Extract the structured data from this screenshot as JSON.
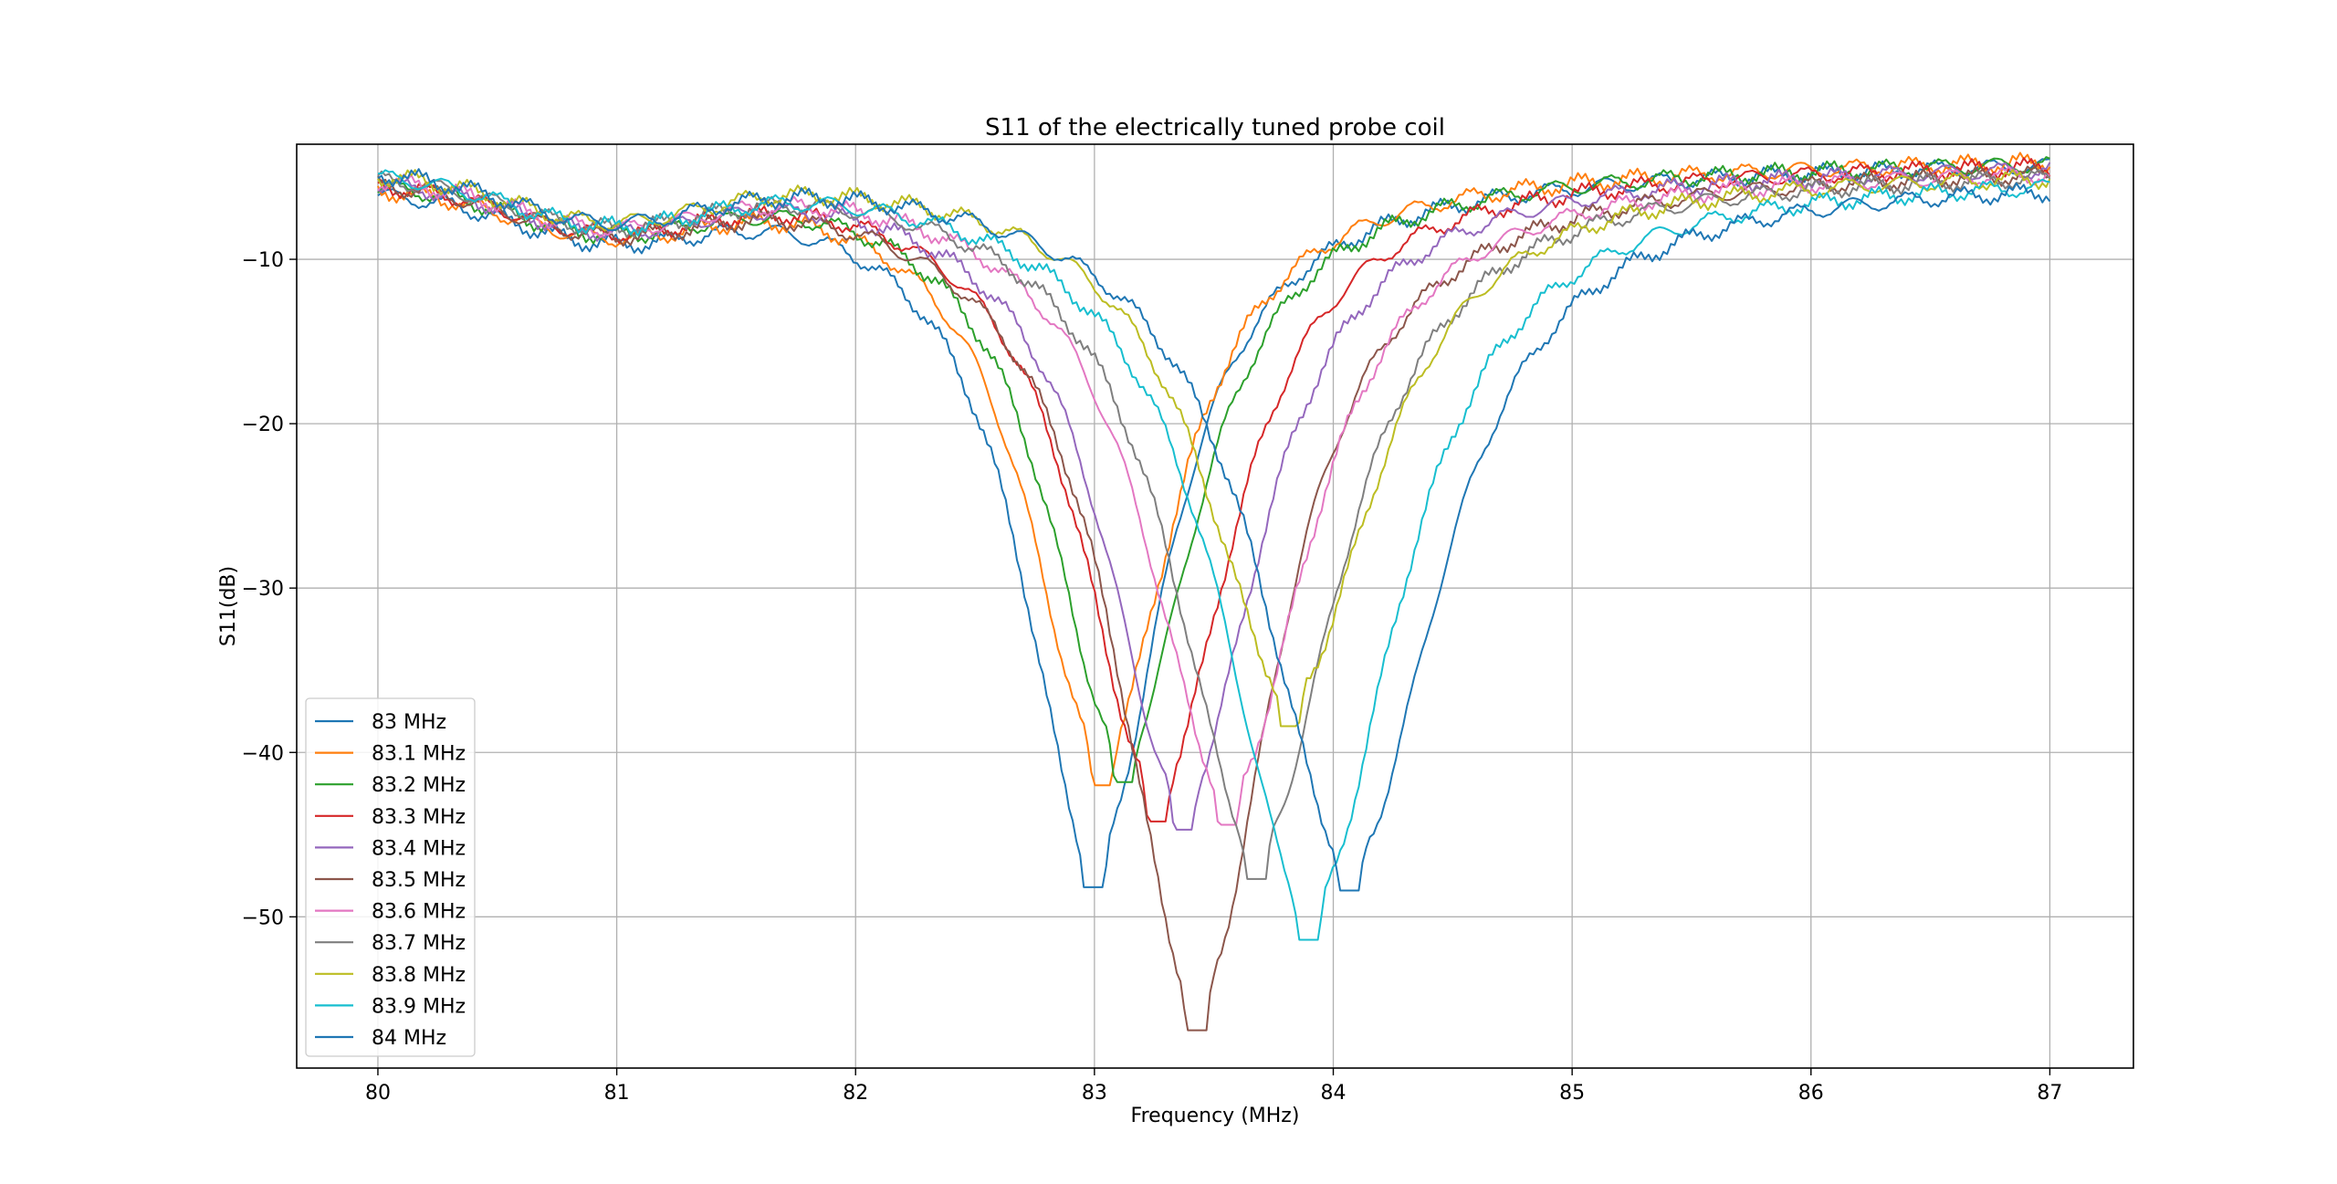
{
  "chart_data": {
    "type": "line",
    "title": "S11 of the electrically tuned probe coil",
    "xlabel": "Frequency (MHz)",
    "ylabel": "S11(dB)",
    "xlim": [
      79.66,
      87.35
    ],
    "ylim": [
      -59.2,
      -3.0
    ],
    "xticks": [
      80,
      81,
      82,
      83,
      84,
      85,
      86,
      87
    ],
    "xtick_labels": [
      "80",
      "81",
      "82",
      "83",
      "84",
      "85",
      "86",
      "87"
    ],
    "yticks": [
      -10,
      -20,
      -30,
      -40,
      -50
    ],
    "ytick_labels": [
      "−10",
      "−20",
      "−30",
      "−40",
      "−50"
    ],
    "grid": true,
    "legend_position": "lower-left",
    "series": [
      {
        "name": "83 MHz",
        "color": "#1f77b4",
        "center": 83.0,
        "min": -48.2,
        "start": -5.4,
        "end": -4.0
      },
      {
        "name": "83.1 MHz",
        "color": "#ff7f0e",
        "center": 83.03,
        "min": -42.0,
        "start": -5.2,
        "end": -3.8
      },
      {
        "name": "83.2 MHz",
        "color": "#2ca02c",
        "center": 83.12,
        "min": -41.8,
        "start": -5.0,
        "end": -3.9
      },
      {
        "name": "83.3 MHz",
        "color": "#d62728",
        "center": 83.26,
        "min": -44.2,
        "start": -4.9,
        "end": -4.0
      },
      {
        "name": "83.4 MHz",
        "color": "#9467bd",
        "center": 83.37,
        "min": -44.7,
        "start": -4.8,
        "end": -4.1
      },
      {
        "name": "83.5 MHz",
        "color": "#8c564b",
        "center": 83.43,
        "min": -56.9,
        "start": -4.7,
        "end": -4.2
      },
      {
        "name": "83.6 MHz",
        "color": "#e377c2",
        "center": 83.56,
        "min": -44.4,
        "start": -4.6,
        "end": -4.3
      },
      {
        "name": "83.7 MHz",
        "color": "#7f7f7f",
        "center": 83.68,
        "min": -47.7,
        "start": -4.5,
        "end": -4.4
      },
      {
        "name": "83.8 MHz",
        "color": "#bcbd22",
        "center": 83.82,
        "min": -38.4,
        "start": -4.4,
        "end": -4.5
      },
      {
        "name": "83.9 MHz",
        "color": "#17becf",
        "center": 83.9,
        "min": -51.4,
        "start": -4.3,
        "end": -4.7
      },
      {
        "name": "84 MHz",
        "color": "#1f77b4",
        "center": 84.07,
        "min": -48.4,
        "start": -4.2,
        "end": -4.9
      }
    ]
  }
}
